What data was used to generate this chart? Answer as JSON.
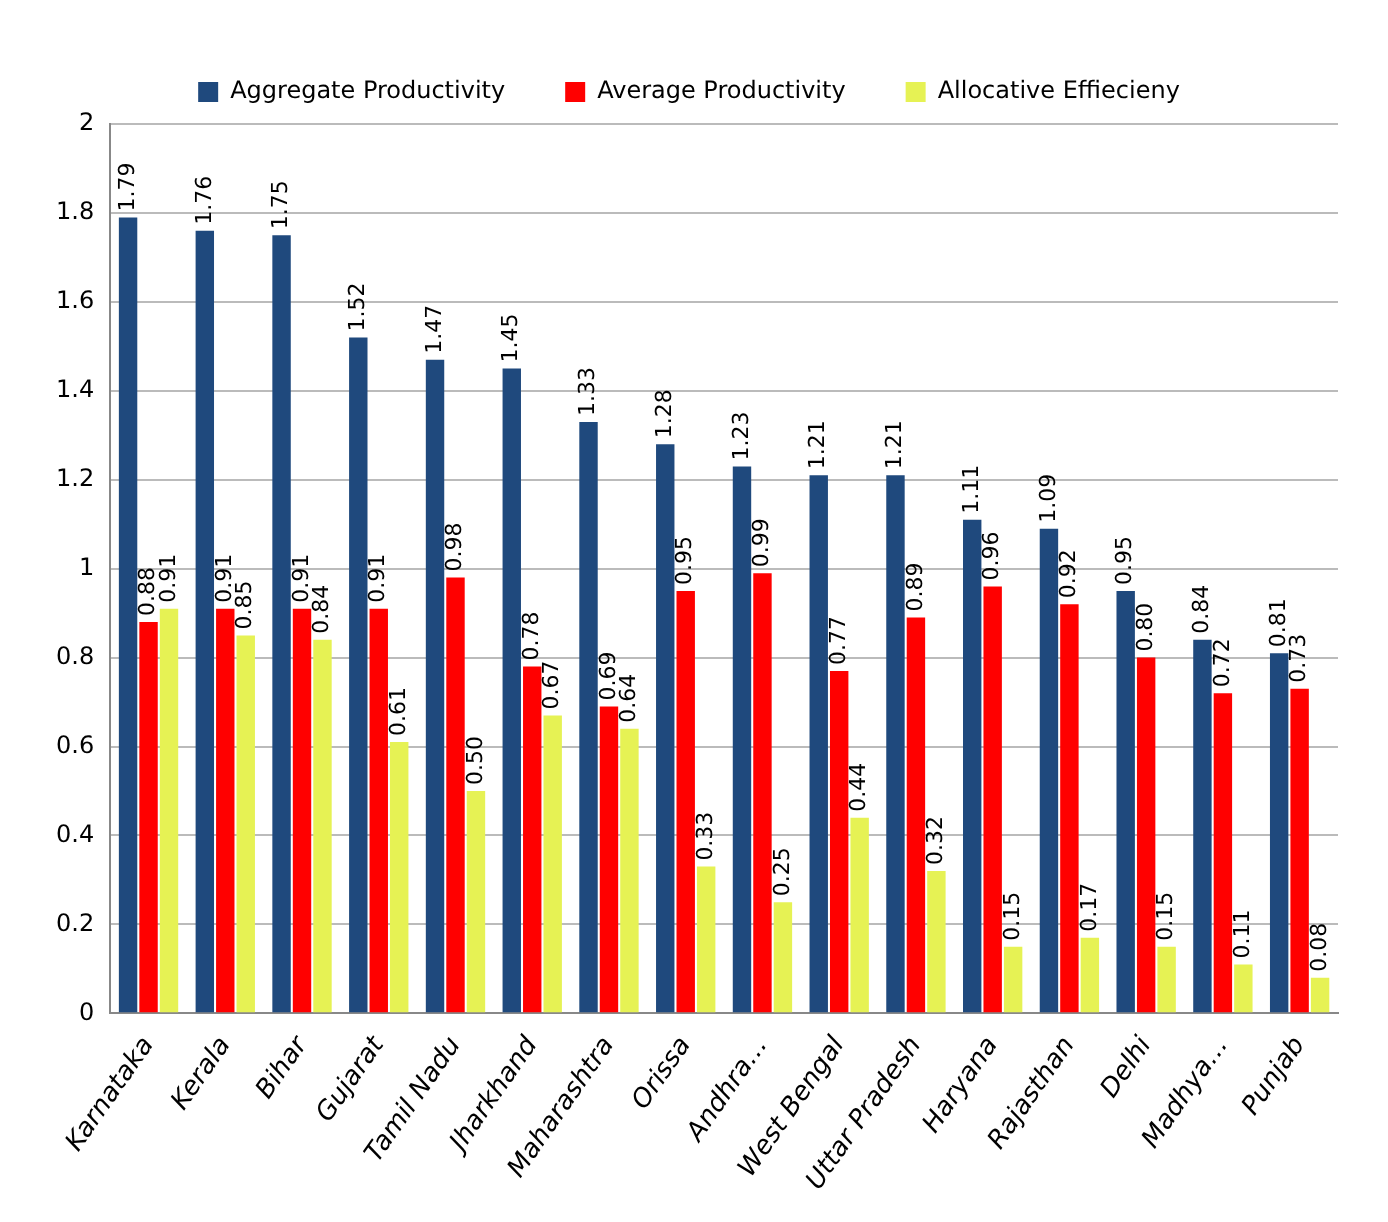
{
  "chart_data": {
    "type": "bar",
    "categories": [
      "Karnataka",
      "Kerala",
      "Bihar",
      "Gujarat",
      "Tamil Nadu",
      "Jharkhand",
      "Maharashtra",
      "Orissa",
      "Andhra…",
      "West Bengal",
      "Uttar Pradesh",
      "Haryana",
      "Rajasthan",
      "Delhi",
      "Madhya…",
      "Punjab"
    ],
    "series": [
      {
        "name": "Aggregate Productivity",
        "color": "#1f497d",
        "values": [
          1.79,
          1.76,
          1.75,
          1.52,
          1.47,
          1.45,
          1.33,
          1.28,
          1.23,
          1.21,
          1.21,
          1.11,
          1.09,
          0.95,
          0.84,
          0.81
        ],
        "value_labels": [
          "1.79",
          "1.76",
          "1.75",
          "1.52",
          "1.47",
          "1.45",
          "1.33",
          "1.28",
          "1.23",
          "1.21",
          "1.21",
          "1.11",
          "1.09",
          "0.95",
          "0.84",
          "0.81"
        ]
      },
      {
        "name": "Average Productivity",
        "color": "#ff0000",
        "values": [
          0.88,
          0.91,
          0.91,
          0.91,
          0.98,
          0.78,
          0.69,
          0.95,
          0.99,
          0.77,
          0.89,
          0.96,
          0.92,
          0.8,
          0.72,
          0.73
        ],
        "value_labels": [
          "0.88",
          "0.91",
          "0.91",
          "0.91",
          "0.98",
          "0.78",
          "0.69",
          "0.95",
          "0.99",
          "0.77",
          "0.89",
          "0.96",
          "0.92",
          "0.80",
          "0.72",
          "0.73"
        ]
      },
      {
        "name": "Allocative Effiecieny",
        "color": "#e6f254",
        "values": [
          0.91,
          0.85,
          0.84,
          0.61,
          0.5,
          0.67,
          0.64,
          0.33,
          0.25,
          0.44,
          0.32,
          0.15,
          0.17,
          0.15,
          0.11,
          0.08
        ],
        "value_labels": [
          "0.91",
          "0.85",
          "0.84",
          "0.61",
          "0.50",
          "0.67",
          "0.64",
          "0.33",
          "0.25",
          "0.44",
          "0.32",
          "0.15",
          "0.17",
          "0.15",
          "0.11",
          "0.08"
        ]
      }
    ],
    "ylim": [
      0,
      2
    ],
    "yticks": [
      0,
      0.2,
      0.4,
      0.6,
      0.8,
      1,
      1.2,
      1.4,
      1.6,
      1.8,
      2
    ],
    "grid": "y",
    "legend": "top"
  }
}
